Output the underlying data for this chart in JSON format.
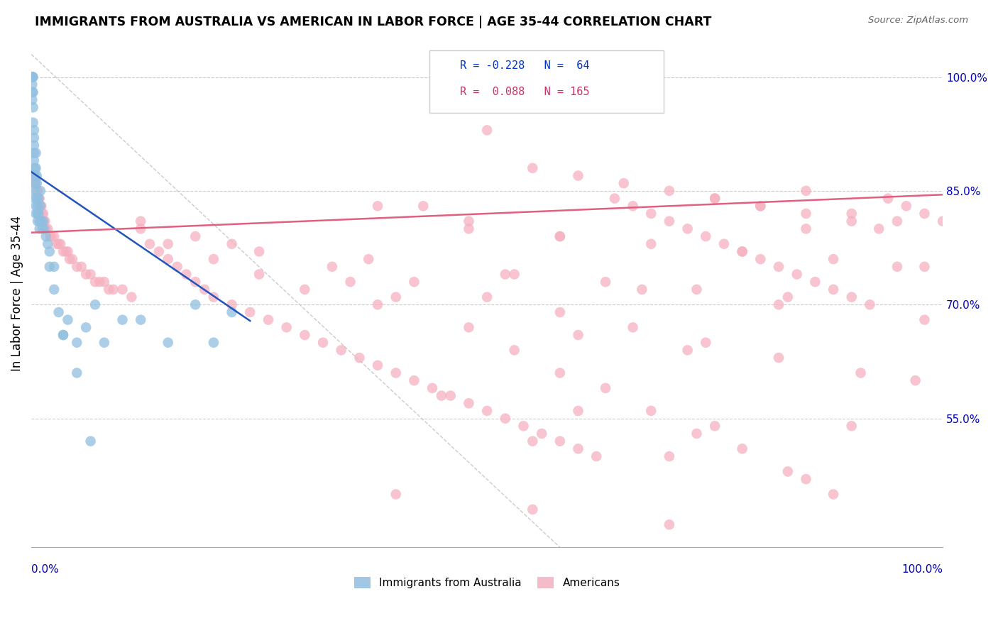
{
  "title": "IMMIGRANTS FROM AUSTRALIA VS AMERICAN IN LABOR FORCE | AGE 35-44 CORRELATION CHART",
  "source": "Source: ZipAtlas.com",
  "ylabel": "In Labor Force | Age 35-44",
  "yticks": [
    0.55,
    0.7,
    0.85,
    1.0
  ],
  "ytick_labels": [
    "55.0%",
    "70.0%",
    "85.0%",
    "100.0%"
  ],
  "xmin": 0.0,
  "xmax": 1.0,
  "ymin": 0.38,
  "ymax": 1.05,
  "legend_label_australia": "Immigrants from Australia",
  "legend_label_americans": "Americans",
  "blue_color": "#90bfe0",
  "pink_color": "#f5b0c0",
  "trendline_blue_color": "#2255bb",
  "trendline_pink_color": "#e06080",
  "blue_x": [
    0.001,
    0.001,
    0.001,
    0.001,
    0.001,
    0.001,
    0.001,
    0.001,
    0.002,
    0.002,
    0.002,
    0.002,
    0.003,
    0.003,
    0.003,
    0.003,
    0.003,
    0.004,
    0.004,
    0.004,
    0.004,
    0.004,
    0.005,
    0.005,
    0.005,
    0.005,
    0.006,
    0.006,
    0.006,
    0.007,
    0.007,
    0.007,
    0.008,
    0.008,
    0.009,
    0.009,
    0.01,
    0.01,
    0.011,
    0.012,
    0.013,
    0.014,
    0.016,
    0.018,
    0.02,
    0.025,
    0.03,
    0.035,
    0.04,
    0.05,
    0.06,
    0.07,
    0.08,
    0.1,
    0.12,
    0.15,
    0.18,
    0.2,
    0.22,
    0.02,
    0.025,
    0.035,
    0.05,
    0.065
  ],
  "blue_y": [
    1.0,
    1.0,
    1.0,
    1.0,
    1.0,
    0.99,
    0.98,
    0.97,
    1.0,
    0.98,
    0.96,
    0.94,
    0.93,
    0.92,
    0.91,
    0.9,
    0.89,
    0.88,
    0.87,
    0.86,
    0.85,
    0.84,
    0.83,
    0.82,
    0.9,
    0.88,
    0.87,
    0.86,
    0.84,
    0.83,
    0.82,
    0.81,
    0.84,
    0.82,
    0.81,
    0.8,
    0.85,
    0.83,
    0.81,
    0.8,
    0.81,
    0.8,
    0.79,
    0.78,
    0.77,
    0.75,
    0.69,
    0.66,
    0.68,
    0.61,
    0.67,
    0.7,
    0.65,
    0.68,
    0.68,
    0.65,
    0.7,
    0.65,
    0.69,
    0.75,
    0.72,
    0.66,
    0.65,
    0.52
  ],
  "pink_x": [
    0.002,
    0.003,
    0.004,
    0.005,
    0.006,
    0.007,
    0.008,
    0.009,
    0.01,
    0.011,
    0.012,
    0.013,
    0.014,
    0.015,
    0.016,
    0.018,
    0.02,
    0.022,
    0.025,
    0.028,
    0.03,
    0.032,
    0.035,
    0.038,
    0.04,
    0.042,
    0.045,
    0.05,
    0.055,
    0.06,
    0.065,
    0.07,
    0.075,
    0.08,
    0.085,
    0.09,
    0.1,
    0.11,
    0.12,
    0.13,
    0.14,
    0.15,
    0.16,
    0.17,
    0.18,
    0.19,
    0.2,
    0.22,
    0.24,
    0.26,
    0.28,
    0.3,
    0.32,
    0.34,
    0.36,
    0.38,
    0.4,
    0.42,
    0.44,
    0.46,
    0.48,
    0.5,
    0.52,
    0.54,
    0.56,
    0.58,
    0.6,
    0.62,
    0.64,
    0.66,
    0.68,
    0.7,
    0.72,
    0.74,
    0.76,
    0.78,
    0.8,
    0.82,
    0.84,
    0.86,
    0.88,
    0.9,
    0.92,
    0.94,
    0.96,
    0.98,
    1.0,
    0.45,
    0.5,
    0.55,
    0.6,
    0.65,
    0.7,
    0.75,
    0.8,
    0.85,
    0.9,
    0.95,
    0.35,
    0.4,
    0.48,
    0.53,
    0.58,
    0.63,
    0.68,
    0.73,
    0.78,
    0.83,
    0.88,
    0.93,
    0.15,
    0.2,
    0.25,
    0.3,
    0.38,
    0.43,
    0.12,
    0.18,
    0.25,
    0.33,
    0.42,
    0.5,
    0.58,
    0.66,
    0.74,
    0.82,
    0.91,
    0.98,
    0.6,
    0.72,
    0.85,
    0.22,
    0.37,
    0.52,
    0.67,
    0.82,
    0.97,
    0.45,
    0.6,
    0.75,
    0.9,
    0.55,
    0.7,
    0.85,
    0.4,
    0.55,
    0.7,
    0.85,
    0.75,
    0.8,
    0.9,
    0.95,
    0.48,
    0.58,
    0.68,
    0.78,
    0.88,
    0.98,
    0.53,
    0.63,
    0.73,
    0.83,
    0.38,
    0.48,
    0.58
  ],
  "pink_y": [
    0.87,
    0.87,
    0.86,
    0.86,
    0.85,
    0.85,
    0.84,
    0.84,
    0.83,
    0.83,
    0.82,
    0.82,
    0.81,
    0.81,
    0.8,
    0.8,
    0.79,
    0.79,
    0.79,
    0.78,
    0.78,
    0.78,
    0.77,
    0.77,
    0.77,
    0.76,
    0.76,
    0.75,
    0.75,
    0.74,
    0.74,
    0.73,
    0.73,
    0.73,
    0.72,
    0.72,
    0.72,
    0.71,
    0.8,
    0.78,
    0.77,
    0.76,
    0.75,
    0.74,
    0.73,
    0.72,
    0.71,
    0.7,
    0.69,
    0.68,
    0.67,
    0.66,
    0.65,
    0.64,
    0.63,
    0.62,
    0.61,
    0.6,
    0.59,
    0.58,
    0.57,
    0.56,
    0.55,
    0.54,
    0.53,
    0.52,
    0.51,
    0.5,
    0.84,
    0.83,
    0.82,
    0.81,
    0.8,
    0.79,
    0.78,
    0.77,
    0.76,
    0.75,
    0.74,
    0.73,
    0.72,
    0.71,
    0.7,
    0.84,
    0.83,
    0.82,
    0.81,
    0.96,
    0.93,
    0.88,
    0.87,
    0.86,
    0.85,
    0.84,
    0.83,
    0.82,
    0.81,
    0.75,
    0.73,
    0.71,
    0.67,
    0.64,
    0.61,
    0.59,
    0.56,
    0.53,
    0.51,
    0.48,
    0.45,
    0.8,
    0.78,
    0.76,
    0.74,
    0.72,
    0.7,
    0.83,
    0.81,
    0.79,
    0.77,
    0.75,
    0.73,
    0.71,
    0.69,
    0.67,
    0.65,
    0.63,
    0.61,
    0.68,
    0.66,
    0.64,
    0.8,
    0.78,
    0.76,
    0.74,
    0.72,
    0.7,
    0.6,
    0.58,
    0.56,
    0.54,
    0.54,
    0.52,
    0.5,
    0.47,
    0.45,
    0.43,
    0.41,
    0.85,
    0.84,
    0.83,
    0.82,
    0.81,
    0.8,
    0.79,
    0.78,
    0.77,
    0.76,
    0.75,
    0.74,
    0.73,
    0.72,
    0.71,
    0.83,
    0.81,
    0.79
  ]
}
